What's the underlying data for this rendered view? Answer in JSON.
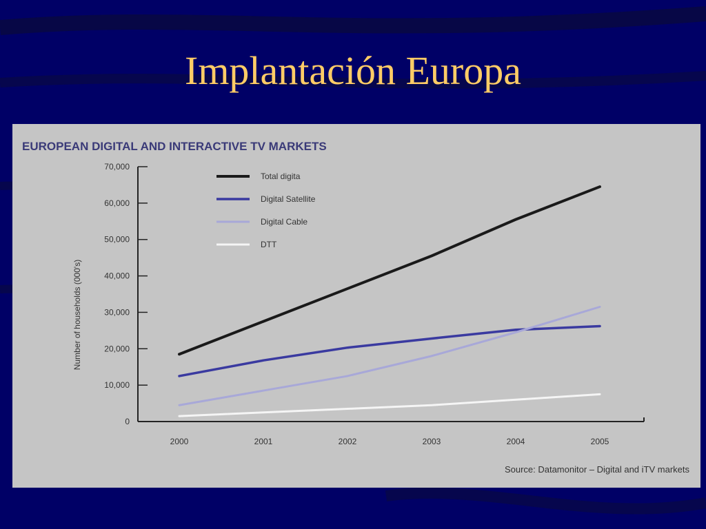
{
  "slide": {
    "title": "Implantación Europa",
    "background": "#000066",
    "title_color": "#ffcc66"
  },
  "chart_data": {
    "type": "line",
    "title": "EUROPEAN DIGITAL AND INTERACTIVE TV MARKETS",
    "xlabel": "",
    "ylabel": "Number of households (000's)",
    "categories": [
      "2000",
      "2001",
      "2002",
      "2003",
      "2004",
      "2005"
    ],
    "y_ticks": [
      "0",
      "10,000",
      "20,000",
      "30,000",
      "40,000",
      "50,000",
      "60,000",
      "70,000"
    ],
    "ylim": [
      0,
      70000
    ],
    "grid": false,
    "legend_position": "top-left",
    "series": [
      {
        "name": "Total digita",
        "color": "#1a1a1a",
        "values": [
          18500,
          27500,
          36500,
          45500,
          55500,
          64500
        ]
      },
      {
        "name": "Digital Satellite",
        "color": "#3a3aa0",
        "values": [
          12500,
          16800,
          20300,
          22800,
          25200,
          26200
        ]
      },
      {
        "name": "Digital Cable",
        "color": "#a8a8d8",
        "values": [
          4500,
          8500,
          12500,
          18000,
          24500,
          31500
        ]
      },
      {
        "name": "DTT",
        "color": "#f5f5f5",
        "values": [
          1500,
          2500,
          3500,
          4500,
          6000,
          7500
        ]
      }
    ],
    "source": "Source: Datamonitor – Digital and iTV markets"
  }
}
